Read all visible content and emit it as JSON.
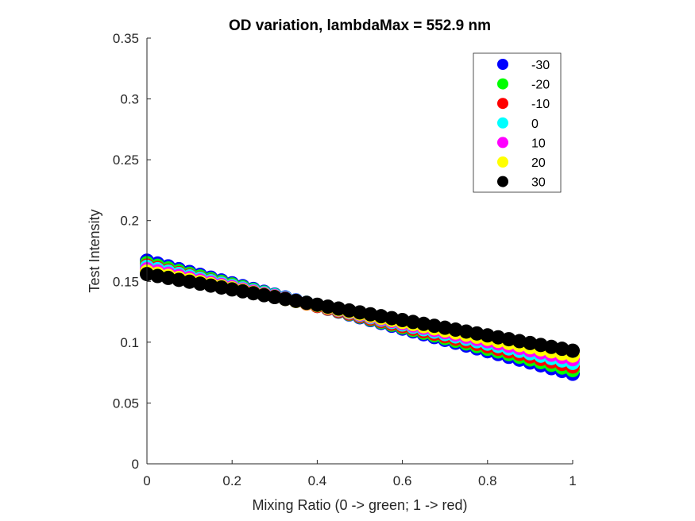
{
  "chart_data": {
    "type": "scatter",
    "title": "OD variation, lambdaMax = 552.9 nm",
    "xlabel": "Mixing Ratio (0 -> green; 1 -> red)",
    "ylabel": "Test Intensity",
    "xlim": [
      0,
      1
    ],
    "ylim": [
      0,
      0.35
    ],
    "xticks": [
      "0",
      "0.2",
      "0.4",
      "0.6",
      "0.8",
      "1"
    ],
    "yticks": [
      "0",
      "0.05",
      "0.1",
      "0.15",
      "0.2",
      "0.25",
      "0.3",
      "0.35"
    ],
    "grid": false,
    "legend_position": "top-right",
    "x": [
      0,
      0.025,
      0.05,
      0.075,
      0.1,
      0.125,
      0.15,
      0.175,
      0.2,
      0.225,
      0.25,
      0.275,
      0.3,
      0.325,
      0.35,
      0.375,
      0.4,
      0.425,
      0.45,
      0.475,
      0.5,
      0.525,
      0.55,
      0.575,
      0.6,
      0.625,
      0.65,
      0.675,
      0.7,
      0.725,
      0.75,
      0.775,
      0.8,
      0.825,
      0.85,
      0.875,
      0.9,
      0.925,
      0.95,
      0.975,
      1
    ],
    "series": [
      {
        "name": "-30",
        "color": "#0000ff",
        "y_start": 0.167,
        "y_end": 0.074
      },
      {
        "name": "-20",
        "color": "#00ff00",
        "y_start": 0.165,
        "y_end": 0.077
      },
      {
        "name": "-10",
        "color": "#ff0000",
        "y_start": 0.163,
        "y_end": 0.08
      },
      {
        "name": "0",
        "color": "#00ffff",
        "y_start": 0.162,
        "y_end": 0.083
      },
      {
        "name": "10",
        "color": "#ff00ff",
        "y_start": 0.16,
        "y_end": 0.086
      },
      {
        "name": "20",
        "color": "#ffff00",
        "y_start": 0.158,
        "y_end": 0.089
      },
      {
        "name": "30",
        "color": "#000000",
        "y_start": 0.156,
        "y_end": 0.093
      }
    ]
  }
}
